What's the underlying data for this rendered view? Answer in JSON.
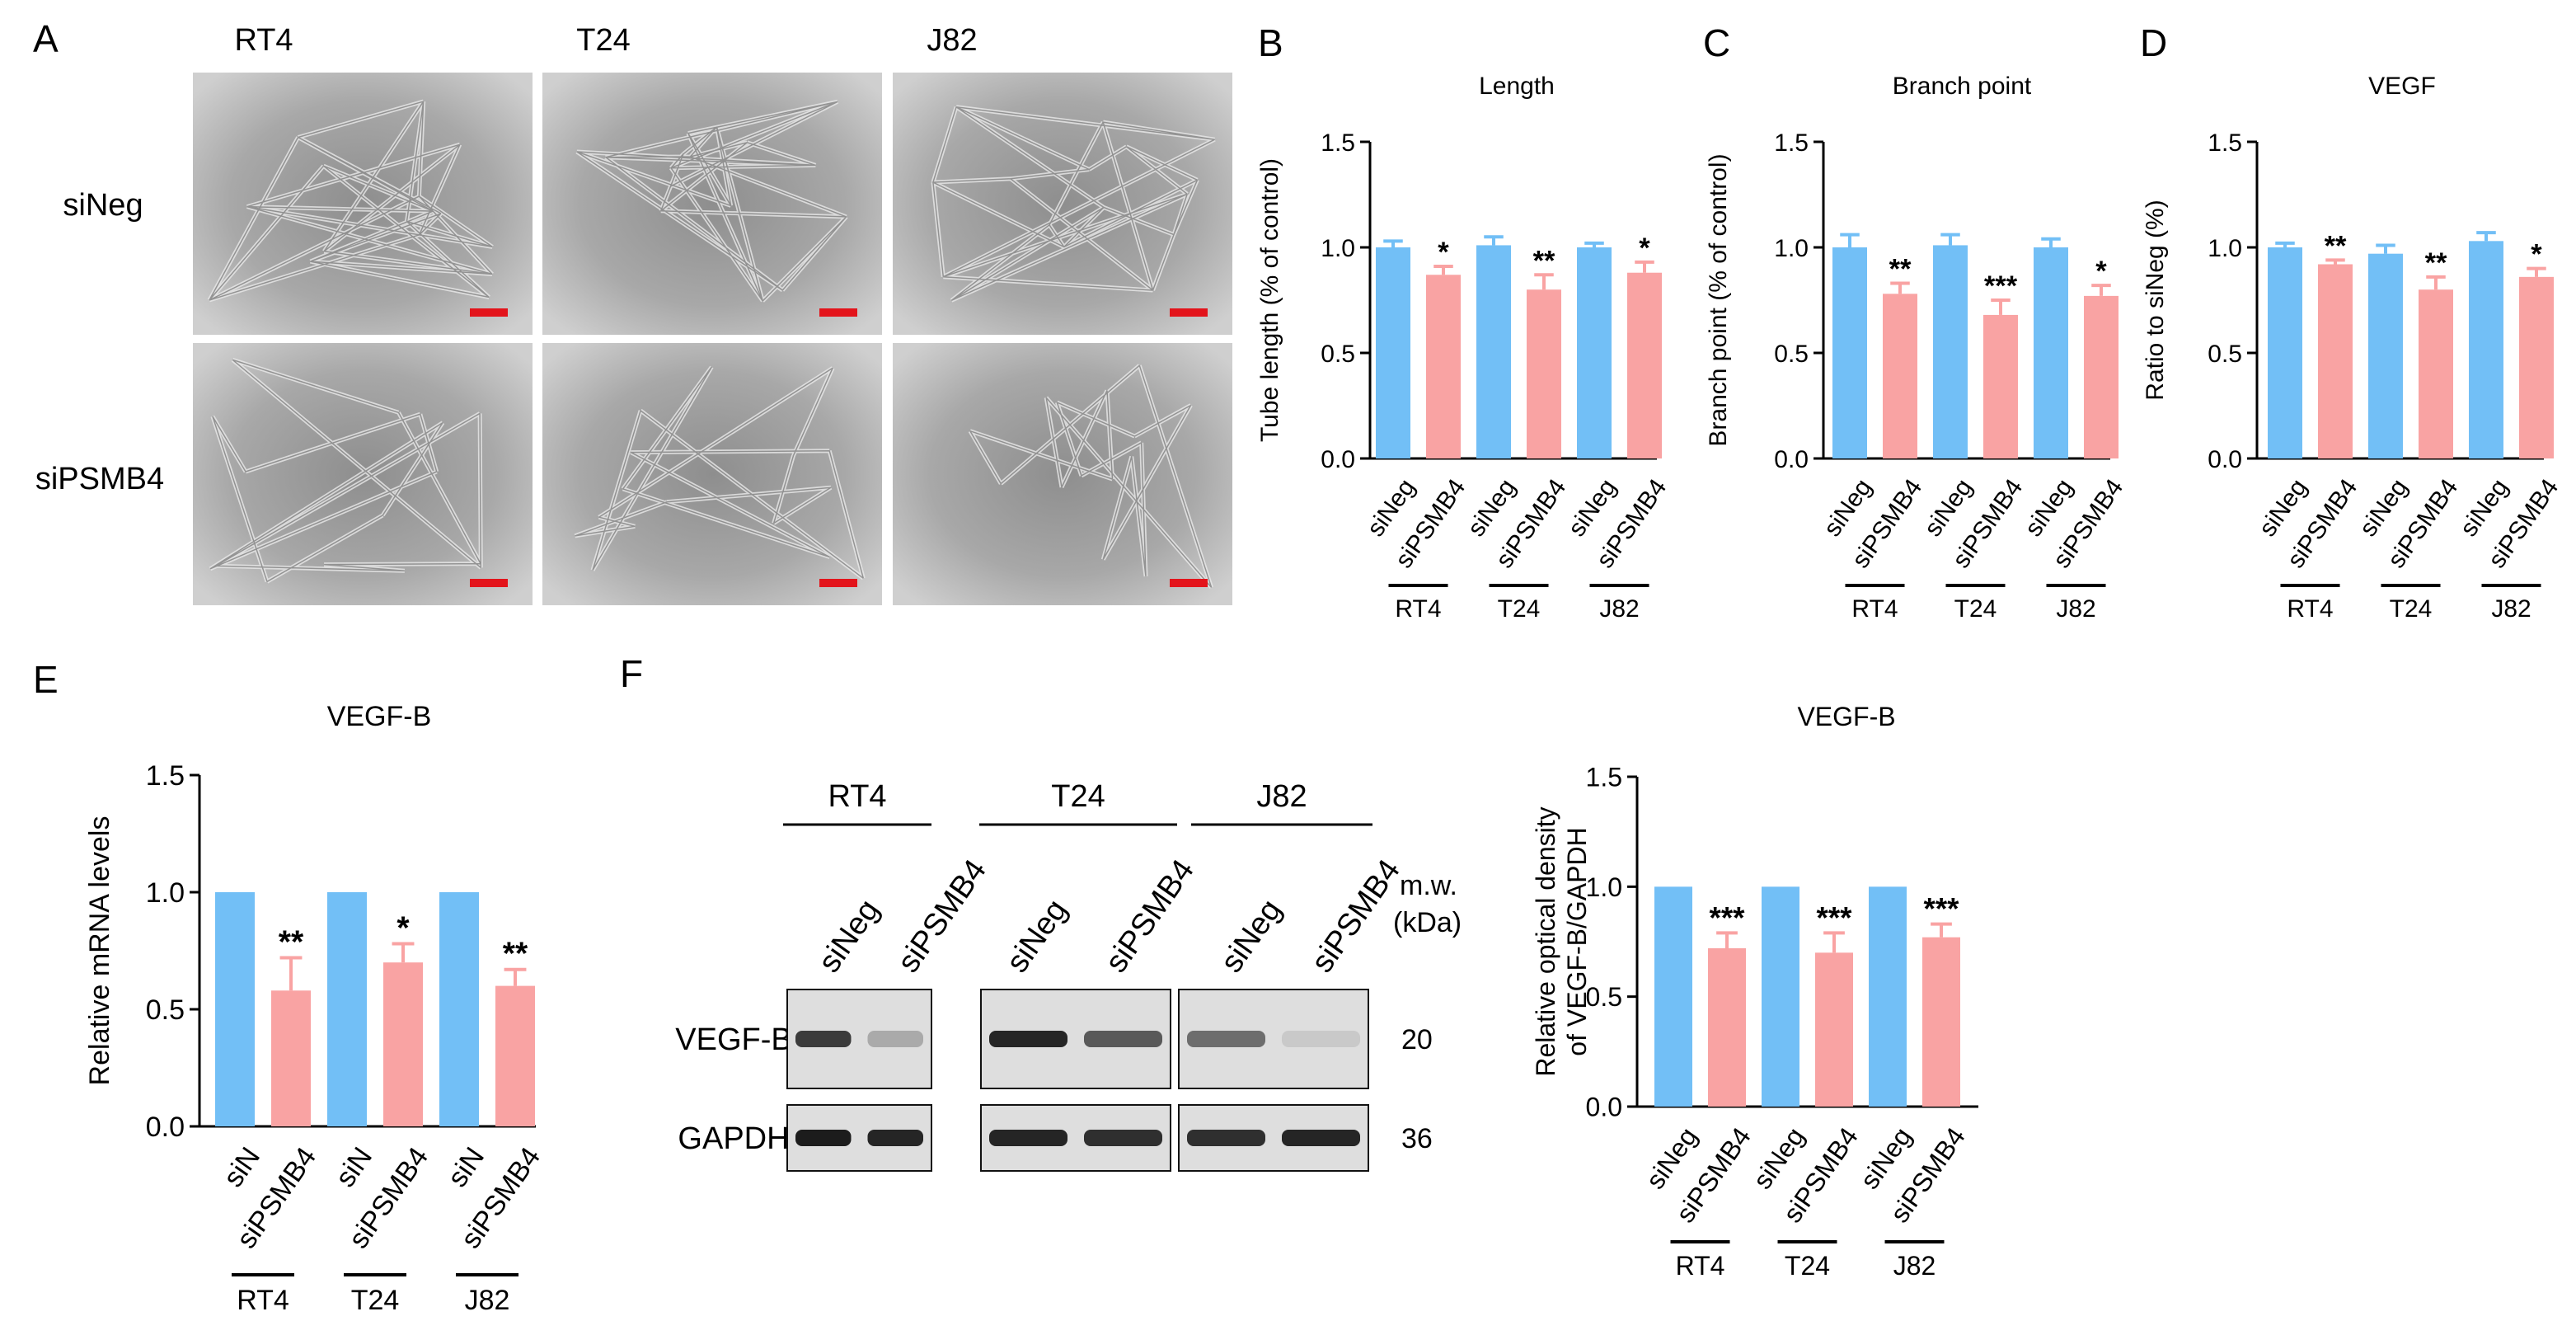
{
  "colors": {
    "control": "#72bff6",
    "knockdown": "#f9a3a3",
    "scalebar": "#e3141b",
    "text": "#000000"
  },
  "panel_A": {
    "letter": "A",
    "col_headers": [
      "RT4",
      "T24",
      "J82"
    ],
    "row_headers": [
      "siNeg",
      "siPSMB4"
    ]
  },
  "panel_F_blot": {
    "letter": "F",
    "groups": [
      "RT4",
      "T24",
      "J82"
    ],
    "lanes": [
      "siNeg",
      "siPSMB4",
      "siNeg",
      "siPSMB4",
      "siNeg",
      "siPSMB4"
    ],
    "mw_header": [
      "m.w.",
      "(kDa)"
    ],
    "bands": [
      {
        "name": "VEGF-B",
        "mw": "20",
        "intensity": [
          0.8,
          0.25,
          0.9,
          0.65,
          0.55,
          0.1
        ]
      },
      {
        "name": "GAPDH",
        "mw": "36",
        "intensity": [
          0.95,
          0.9,
          0.9,
          0.85,
          0.85,
          0.9
        ]
      }
    ]
  },
  "chart_data": [
    {
      "letter": "B",
      "type": "bar",
      "title": "Length",
      "ylabel": "Tube length (% of control)",
      "ylim": [
        0,
        1.5
      ],
      "yticks": [
        "0.0",
        "0.5",
        "1.0",
        "1.5"
      ],
      "categories": [
        "siNeg",
        "siPSMB4",
        "siNeg",
        "siPSMB4",
        "siNeg",
        "siPSMB4"
      ],
      "groups": [
        "RT4",
        "T24",
        "J82"
      ],
      "values": [
        1.0,
        0.87,
        1.01,
        0.8,
        1.0,
        0.88
      ],
      "errors": [
        0.03,
        0.04,
        0.04,
        0.07,
        0.02,
        0.05
      ],
      "stars": [
        "",
        "*",
        "",
        "**",
        "",
        "*"
      ]
    },
    {
      "letter": "C",
      "type": "bar",
      "title": "Branch point",
      "ylabel": "Branch point (% of control)",
      "ylim": [
        0,
        1.5
      ],
      "yticks": [
        "0.0",
        "0.5",
        "1.0",
        "1.5"
      ],
      "categories": [
        "siNeg",
        "siPSMB4",
        "siNeg",
        "siPSMB4",
        "siNeg",
        "siPSMB4"
      ],
      "groups": [
        "RT4",
        "T24",
        "J82"
      ],
      "values": [
        1.0,
        0.78,
        1.01,
        0.68,
        1.0,
        0.77
      ],
      "errors": [
        0.06,
        0.05,
        0.05,
        0.07,
        0.04,
        0.05
      ],
      "stars": [
        "",
        "**",
        "",
        "***",
        "",
        "*"
      ]
    },
    {
      "letter": "D",
      "type": "bar",
      "title": "VEGF",
      "ylabel": "Ratio to siNeg (%)",
      "ylim": [
        0,
        1.5
      ],
      "yticks": [
        "0.0",
        "0.5",
        "1.0",
        "1.5"
      ],
      "categories": [
        "siNeg",
        "siPSMB4",
        "siNeg",
        "siPSMB4",
        "siNeg",
        "siPSMB4"
      ],
      "groups": [
        "RT4",
        "T24",
        "J82"
      ],
      "values": [
        1.0,
        0.92,
        0.97,
        0.8,
        1.03,
        0.86
      ],
      "errors": [
        0.02,
        0.02,
        0.04,
        0.06,
        0.04,
        0.04
      ],
      "stars": [
        "",
        "**",
        "",
        "**",
        "",
        "*"
      ]
    },
    {
      "letter": "E",
      "type": "bar",
      "title": "VEGF-B",
      "ylabel": "Relative mRNA levels",
      "ylim": [
        0,
        1.5
      ],
      "yticks": [
        "0.0",
        "0.5",
        "1.0",
        "1.5"
      ],
      "categories": [
        "siN",
        "siPSMB4",
        "siN",
        "siPSMB4",
        "siN",
        "siPSMB4"
      ],
      "groups": [
        "RT4",
        "T24",
        "J82"
      ],
      "values": [
        1.0,
        0.58,
        1.0,
        0.7,
        1.0,
        0.6
      ],
      "errors": [
        0,
        0.14,
        0,
        0.08,
        0,
        0.07
      ],
      "stars": [
        "",
        "**",
        "",
        "*",
        "",
        "**"
      ]
    },
    {
      "letter": "",
      "type": "bar",
      "title": "VEGF-B",
      "ylabel": [
        "Relative optical density",
        "of VEGF-B/GAPDH"
      ],
      "ylim": [
        0,
        1.5
      ],
      "yticks": [
        "0.0",
        "0.5",
        "1.0",
        "1.5"
      ],
      "categories": [
        "siNeg",
        "siPSMB4",
        "siNeg",
        "siPSMB4",
        "siNeg",
        "siPSMB4"
      ],
      "groups": [
        "RT4",
        "T24",
        "J82"
      ],
      "values": [
        1.0,
        0.72,
        1.0,
        0.7,
        1.0,
        0.77
      ],
      "errors": [
        0,
        0.07,
        0,
        0.09,
        0,
        0.06
      ],
      "stars": [
        "",
        "***",
        "",
        "***",
        "",
        "***"
      ]
    }
  ]
}
